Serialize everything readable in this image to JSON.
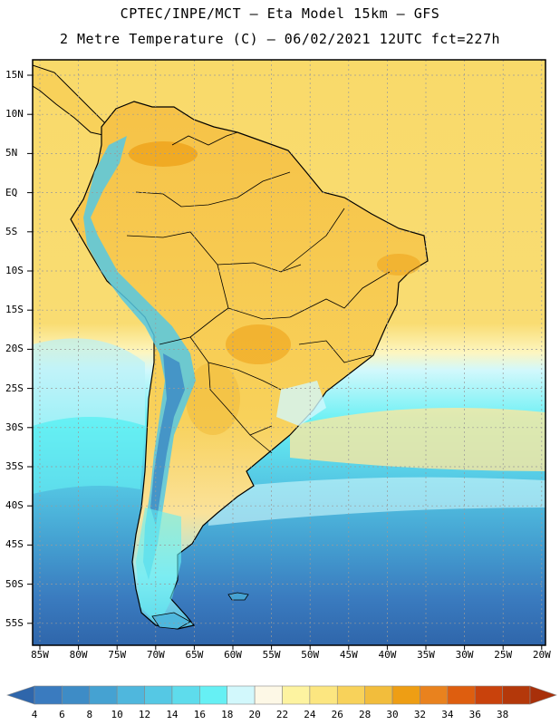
{
  "header": {
    "line1": "CPTEC/INPE/MCT –  Eta Model 15km – GFS",
    "line2": "2 Metre Temperature (C) – 06/02/2021 12UTC fct=227h"
  },
  "axes": {
    "lat_labels": [
      "15N",
      "10N",
      "5N",
      "EQ",
      "5S",
      "10S",
      "15S",
      "20S",
      "25S",
      "30S",
      "35S",
      "40S",
      "45S",
      "50S",
      "55S"
    ],
    "lon_labels": [
      "85W",
      "80W",
      "75W",
      "70W",
      "65W",
      "60W",
      "55W",
      "50W",
      "45W",
      "40W",
      "35W",
      "30W",
      "25W",
      "20W"
    ]
  },
  "colorbar": {
    "ticks": [
      "4",
      "6",
      "8",
      "10",
      "12",
      "14",
      "16",
      "18",
      "20",
      "22",
      "24",
      "26",
      "28",
      "30",
      "32",
      "34",
      "36",
      "38"
    ],
    "colors": [
      "#3a7bbf",
      "#3e8cc6",
      "#45a2d2",
      "#4fb7dd",
      "#55c8e4",
      "#5edcec",
      "#66f0f4",
      "#d2f8fc",
      "#fdf8e6",
      "#fdf3a0",
      "#fce680",
      "#f8d25a",
      "#f2bd3c",
      "#ee9e14",
      "#e9821e",
      "#de5e0f",
      "#c9420c",
      "#b4380a"
    ]
  }
}
